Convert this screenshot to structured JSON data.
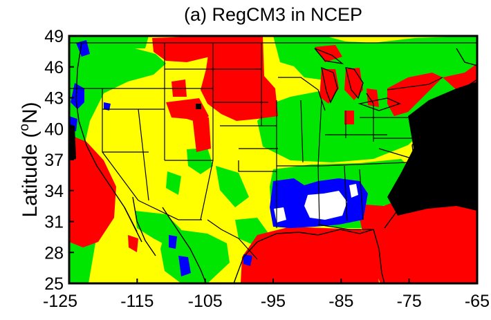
{
  "title": "(a) RegCM3 in NCEP",
  "ylabel": {
    "prefix": "Latitude (",
    "superscript": "o",
    "suffix": "N)"
  },
  "x_ticks": [
    "-125",
    "-115",
    "-105",
    "-95",
    "-85",
    "-75",
    "-65"
  ],
  "y_ticks": [
    "49",
    "46",
    "43",
    "40",
    "37",
    "34",
    "31",
    "28",
    "25"
  ],
  "lon_range": [
    -125,
    -65
  ],
  "lat_range": [
    25,
    49
  ],
  "colors": {
    "yellow": "#ffff00",
    "green": "#00e600",
    "red": "#ff0000",
    "blue": "#0000ff",
    "white": "#ffffff",
    "black": "#000000",
    "frame": "#000000"
  }
}
